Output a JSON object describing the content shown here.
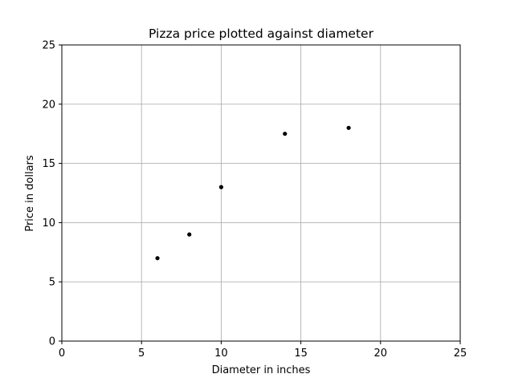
{
  "chart_data": {
    "type": "scatter",
    "title": "Pizza price plotted against diameter",
    "xlabel": "Diameter in inches",
    "ylabel": "Price in dollars",
    "xlim": [
      0,
      25
    ],
    "ylim": [
      0,
      25
    ],
    "xticks": [
      "0",
      "5",
      "10",
      "15",
      "20",
      "25"
    ],
    "yticks": [
      "0",
      "5",
      "10",
      "15",
      "20",
      "25"
    ],
    "grid": true,
    "legend": "none",
    "points": [
      {
        "x": 6,
        "y": 7
      },
      {
        "x": 8,
        "y": 9
      },
      {
        "x": 10,
        "y": 13
      },
      {
        "x": 14,
        "y": 17.5
      },
      {
        "x": 18,
        "y": 18
      }
    ],
    "colors": {
      "marker": "#000000",
      "grid": "#b0b0b0",
      "axes": "#000000"
    }
  }
}
